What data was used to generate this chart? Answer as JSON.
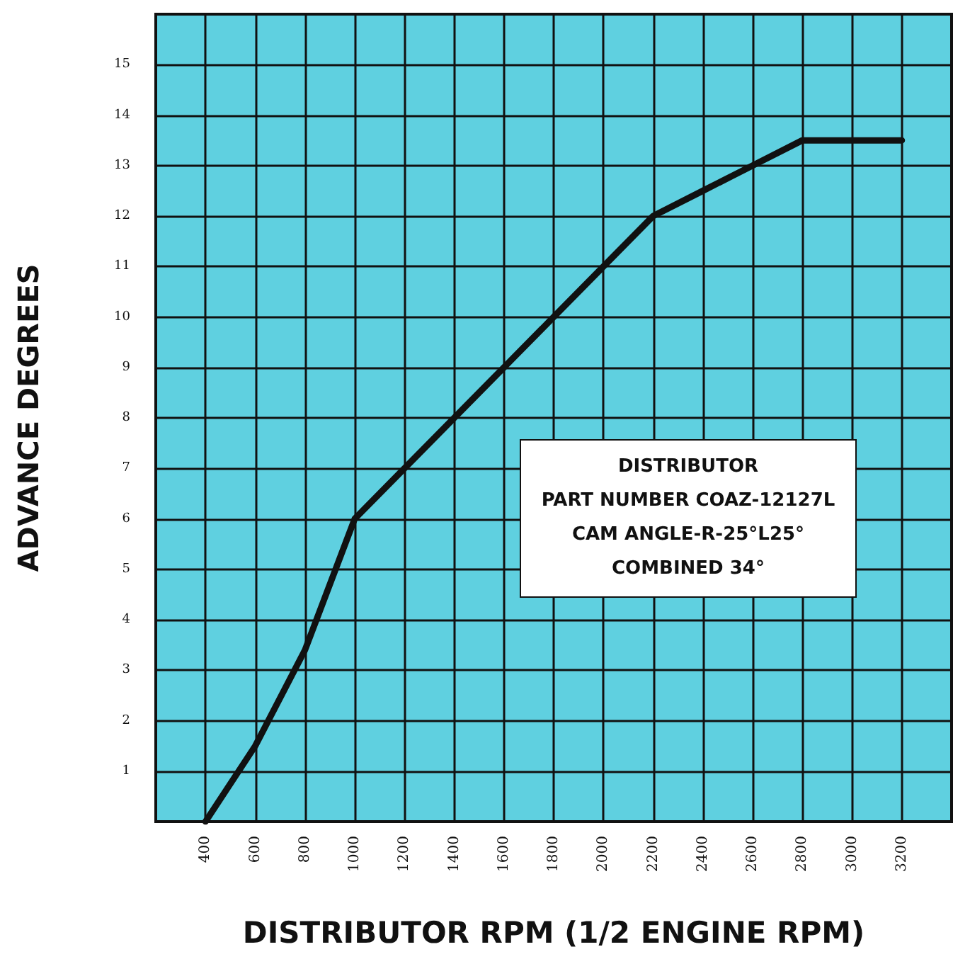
{
  "chart_data": {
    "type": "line",
    "xlabel": "DISTRIBUTOR RPM (1/2 ENGINE RPM)",
    "ylabel": "ADVANCE DEGREES",
    "x": [
      400,
      600,
      800,
      1000,
      1200,
      1400,
      1600,
      1800,
      2000,
      2200,
      2400,
      2600,
      2800,
      3200
    ],
    "series": [
      {
        "color": "#111111",
        "values": [
          0,
          1.5,
          3.4,
          6,
          7,
          8,
          9,
          10,
          11,
          12,
          12.5,
          13,
          13.5,
          13.5
        ]
      }
    ],
    "xlim": [
      200,
      3400
    ],
    "xticks": [
      400,
      600,
      800,
      1000,
      1200,
      1400,
      1600,
      1800,
      2000,
      2200,
      2400,
      2600,
      2800,
      3000,
      3200
    ],
    "ylim": [
      0,
      16
    ],
    "yticks": [
      1,
      2,
      3,
      4,
      5,
      6,
      7,
      8,
      9,
      10,
      11,
      12,
      13,
      14,
      15
    ],
    "grid": true,
    "marker": "none",
    "line_style": "solid",
    "annotations": [
      "DISTRIBUTOR",
      "PART NUMBER COAZ-12127L",
      "CAM ANGLE-R-25°L25°",
      "COMBINED 34°"
    ]
  }
}
